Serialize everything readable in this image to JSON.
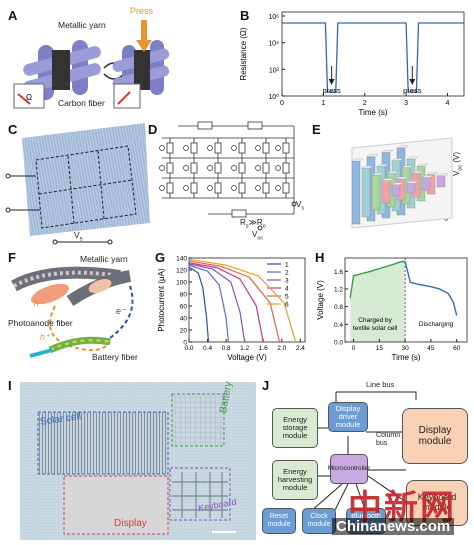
{
  "panels": {
    "A": {
      "label": "A",
      "metallic_yarn": "Metallic yarn",
      "carbon_fiber": "Carbon fiber",
      "press": "Press",
      "omega": "Ω"
    },
    "B": {
      "label": "B",
      "ylabel": "Resistance (Ω)",
      "xlabel": "Time (s)",
      "press1": "press",
      "press2": "press",
      "xticks": [
        "0",
        "1",
        "2",
        "3",
        "4"
      ],
      "yticks": [
        "10⁰",
        "10²",
        "10⁴",
        "10⁶"
      ]
    },
    "C": {
      "label": "C",
      "v_label": "V",
      "v_sub": "s"
    },
    "D": {
      "label": "D",
      "rs": "R",
      "rs_sub": "s",
      "ro": "R",
      "ro_sub": "o",
      "voc": "V",
      "voc_sub": "oc",
      "vs": "V",
      "vs_sub": "s"
    },
    "E": {
      "label": "E",
      "zlabel": "V",
      "zlabel_sub": "oc",
      "zlabel_unit": "(V)",
      "zticks": [
        "0",
        "1",
        "2",
        "3",
        "4",
        "5"
      ]
    },
    "F": {
      "label": "F",
      "metallic_yarn": "Metallic yarn",
      "photoanode": "Photoanode fiber",
      "battery": "Battery fiber",
      "h1": "h⁺",
      "h2": "h⁺",
      "e": "e⁻"
    },
    "G": {
      "label": "G",
      "ylabel": "Photocurrent (μA)",
      "xlabel": "Voltage (V)",
      "xticks": [
        "0.0",
        "0.4",
        "0.8",
        "1.2",
        "1.6",
        "2.0",
        "2.4"
      ],
      "yticks": [
        "0",
        "20",
        "40",
        "60",
        "80",
        "100",
        "120",
        "140"
      ],
      "legend": [
        "1",
        "2",
        "3",
        "4",
        "5",
        "6"
      ]
    },
    "H": {
      "label": "H",
      "ylabel": "Voltage (V)",
      "xlabel": "Time (s)",
      "charged": "Charged by textile solar cell",
      "discharging": "Discharging",
      "xticks": [
        "0",
        "15",
        "30",
        "45",
        "60"
      ],
      "yticks": [
        "0.0",
        "0.4",
        "0.8",
        "1.2",
        "1.6"
      ]
    },
    "I": {
      "label": "I",
      "solar": "Solar cell",
      "battery": "Battery",
      "display": "Display",
      "keyboard": "Keyboard"
    },
    "J": {
      "label": "J",
      "line_bus": "Line bus",
      "column_bus": "Column bus",
      "energy_storage": "Energy storage module",
      "display_driver": "Display driver module",
      "display": "Display module",
      "energy_harvesting": "Energy harvesting module",
      "microcontroller": "Microcontroller",
      "reset": "Reset module",
      "clock": "Clock module",
      "bluetooth": "Bluetooth module",
      "keyboard": "Keyboard module"
    }
  },
  "watermark": {
    "cn": "中新网",
    "en": "Chinanews.com"
  },
  "colors": {
    "blue": "#2d6cb5",
    "green": "#3b9a46",
    "red": "#d24040",
    "purple": "#8a4fbf",
    "orange": "#e59233"
  },
  "chart_data": [
    {
      "panel": "B",
      "type": "line",
      "xlabel": "Time (s)",
      "ylabel": "Resistance (Ω)",
      "yscale": "log",
      "xlim": [
        0,
        4.4
      ],
      "ylim": [
        1,
        1000000
      ],
      "series": [
        {
          "x": [
            0,
            1.05,
            1.1,
            1.3,
            1.35,
            3.0,
            3.05,
            3.25,
            3.3,
            4.4
          ],
          "y": [
            300000,
            300000,
            2,
            2,
            300000,
            300000,
            2,
            2,
            300000,
            300000
          ]
        }
      ]
    },
    {
      "panel": "G",
      "type": "line",
      "xlabel": "Voltage (V)",
      "ylabel": "Photocurrent (μA)",
      "xlim": [
        0,
        2.5
      ],
      "ylim": [
        0,
        140
      ],
      "series": [
        {
          "name": "1",
          "x": [
            0,
            0.2,
            0.3,
            0.38,
            0.42
          ],
          "y": [
            125,
            115,
            90,
            40,
            0
          ]
        },
        {
          "name": "2",
          "x": [
            0,
            0.4,
            0.65,
            0.8,
            0.85
          ],
          "y": [
            128,
            118,
            95,
            40,
            0
          ]
        },
        {
          "name": "3",
          "x": [
            0,
            0.5,
            0.9,
            1.1,
            1.2
          ],
          "y": [
            130,
            122,
            100,
            50,
            0
          ]
        },
        {
          "name": "4",
          "x": [
            0,
            0.6,
            1.1,
            1.45,
            1.6
          ],
          "y": [
            132,
            124,
            105,
            60,
            0
          ]
        },
        {
          "name": "5",
          "x": [
            0,
            0.7,
            1.3,
            1.75,
            1.95
          ],
          "y": [
            135,
            126,
            108,
            65,
            0
          ]
        },
        {
          "name": "6",
          "x": [
            0,
            0.8,
            1.5,
            2.05,
            2.3
          ],
          "y": [
            138,
            128,
            110,
            65,
            0
          ]
        }
      ]
    },
    {
      "panel": "H",
      "type": "line",
      "xlabel": "Time (s)",
      "ylabel": "Voltage (V)",
      "xlim": [
        -5,
        66
      ],
      "ylim": [
        0,
        1.9
      ],
      "series": [
        {
          "x": [
            -2,
            0,
            5,
            10,
            15,
            20,
            25,
            28,
            30,
            33,
            38,
            45,
            50,
            55,
            58,
            60
          ],
          "y": [
            1.0,
            1.5,
            1.55,
            1.6,
            1.66,
            1.72,
            1.78,
            1.82,
            1.82,
            1.35,
            1.3,
            1.25,
            1.2,
            1.1,
            0.9,
            0.6
          ]
        }
      ]
    },
    {
      "panel": "E",
      "type": "bar",
      "zlabel": "V_oc (V)",
      "zlim": [
        0,
        5
      ],
      "rows": [
        [
          4.5,
          4.6,
          4.7,
          4.8
        ],
        [
          3.5,
          3.4,
          3.6,
          3.5
        ],
        [
          2.5,
          2.4,
          2.6,
          2.5
        ],
        [
          1.6,
          1.5,
          1.7,
          1.4
        ],
        [
          0.8,
          0.7,
          0.9,
          0.8
        ]
      ]
    }
  ]
}
